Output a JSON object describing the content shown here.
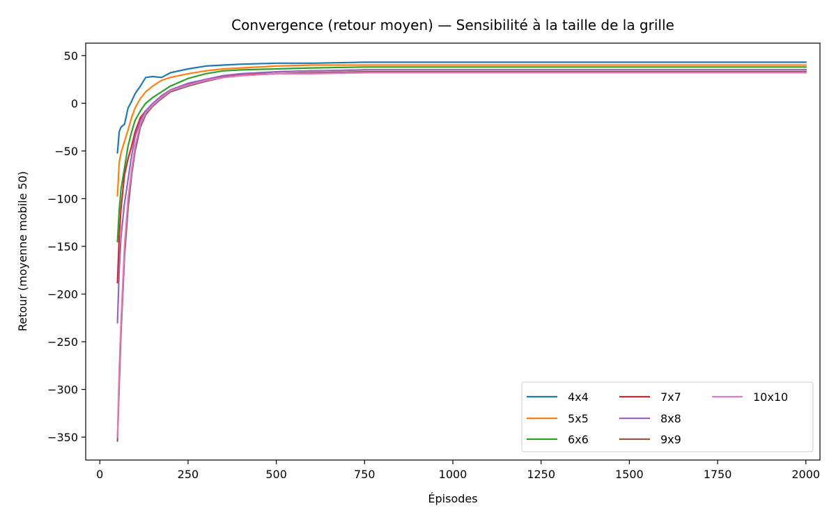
{
  "chart_data": {
    "type": "line",
    "title": "Convergence (retour moyen) — Sensibilité à la taille de la grille",
    "xlabel": "Épisodes",
    "ylabel": "Retour (moyenne mobile 50)",
    "xlim": [
      -40,
      2040
    ],
    "ylim": [
      -374,
      63
    ],
    "xticks": [
      0,
      250,
      500,
      750,
      1000,
      1250,
      1500,
      1750,
      2000
    ],
    "yticks": [
      50,
      0,
      -50,
      -100,
      -150,
      -200,
      -250,
      -300,
      -350
    ],
    "xtick_labels": [
      "0",
      "250",
      "500",
      "750",
      "1000",
      "1250",
      "1500",
      "1750",
      "2000"
    ],
    "ytick_labels": [
      "50",
      "0",
      "−50",
      "−100",
      "−150",
      "−200",
      "−250",
      "−300",
      "−350"
    ],
    "grid": false,
    "legend": {
      "placement": "lower-right",
      "columns": 3
    },
    "series": [
      {
        "name": "4x4",
        "color": "#1f77b4",
        "points": [
          [
            50,
            -52
          ],
          [
            55,
            -30
          ],
          [
            60,
            -25
          ],
          [
            70,
            -22
          ],
          [
            80,
            -5
          ],
          [
            90,
            2
          ],
          [
            100,
            10
          ],
          [
            115,
            18
          ],
          [
            130,
            27
          ],
          [
            150,
            28
          ],
          [
            175,
            27
          ],
          [
            200,
            32
          ],
          [
            250,
            36
          ],
          [
            300,
            39
          ],
          [
            350,
            40
          ],
          [
            400,
            41
          ],
          [
            500,
            42
          ],
          [
            600,
            42
          ],
          [
            750,
            43
          ],
          [
            1000,
            43
          ],
          [
            1250,
            43
          ],
          [
            1500,
            43
          ],
          [
            1750,
            43
          ],
          [
            2000,
            43
          ]
        ]
      },
      {
        "name": "5x5",
        "color": "#ff7f0e",
        "points": [
          [
            50,
            -97
          ],
          [
            55,
            -62
          ],
          [
            60,
            -52
          ],
          [
            70,
            -40
          ],
          [
            80,
            -28
          ],
          [
            90,
            -15
          ],
          [
            100,
            -5
          ],
          [
            115,
            5
          ],
          [
            130,
            12
          ],
          [
            150,
            18
          ],
          [
            175,
            24
          ],
          [
            200,
            27
          ],
          [
            250,
            31
          ],
          [
            300,
            34
          ],
          [
            350,
            36
          ],
          [
            400,
            37
          ],
          [
            500,
            39
          ],
          [
            600,
            40
          ],
          [
            750,
            40
          ],
          [
            1000,
            40
          ],
          [
            1250,
            40
          ],
          [
            1500,
            40
          ],
          [
            1750,
            40
          ],
          [
            2000,
            40
          ]
        ]
      },
      {
        "name": "6x6",
        "color": "#2ca02c",
        "points": [
          [
            50,
            -145
          ],
          [
            55,
            -112
          ],
          [
            60,
            -90
          ],
          [
            70,
            -68
          ],
          [
            80,
            -45
          ],
          [
            90,
            -30
          ],
          [
            100,
            -18
          ],
          [
            115,
            -8
          ],
          [
            130,
            0
          ],
          [
            150,
            6
          ],
          [
            175,
            12
          ],
          [
            200,
            18
          ],
          [
            250,
            26
          ],
          [
            300,
            31
          ],
          [
            350,
            34
          ],
          [
            400,
            35
          ],
          [
            500,
            36
          ],
          [
            600,
            37
          ],
          [
            750,
            38
          ],
          [
            1000,
            38
          ],
          [
            1250,
            38
          ],
          [
            1500,
            38
          ],
          [
            1750,
            38
          ],
          [
            2000,
            38
          ]
        ]
      },
      {
        "name": "7x7",
        "color": "#d62728",
        "points": [
          [
            50,
            -188
          ],
          [
            55,
            -140
          ],
          [
            60,
            -110
          ],
          [
            70,
            -75
          ],
          [
            80,
            -58
          ],
          [
            90,
            -45
          ],
          [
            100,
            -30
          ],
          [
            115,
            -15
          ],
          [
            130,
            -8
          ],
          [
            150,
            -2
          ],
          [
            175,
            5
          ],
          [
            200,
            12
          ],
          [
            250,
            20
          ],
          [
            300,
            25
          ],
          [
            350,
            28
          ],
          [
            400,
            30
          ],
          [
            500,
            33
          ],
          [
            600,
            34
          ],
          [
            750,
            35
          ],
          [
            1000,
            35
          ],
          [
            1250,
            35
          ],
          [
            1500,
            35
          ],
          [
            1750,
            35
          ],
          [
            2000,
            35
          ]
        ]
      },
      {
        "name": "8x8",
        "color": "#9467bd",
        "points": [
          [
            50,
            -230
          ],
          [
            55,
            -175
          ],
          [
            60,
            -140
          ],
          [
            70,
            -105
          ],
          [
            80,
            -80
          ],
          [
            90,
            -55
          ],
          [
            100,
            -35
          ],
          [
            115,
            -18
          ],
          [
            130,
            -8
          ],
          [
            150,
            0
          ],
          [
            175,
            8
          ],
          [
            200,
            14
          ],
          [
            250,
            21
          ],
          [
            300,
            25
          ],
          [
            350,
            29
          ],
          [
            400,
            31
          ],
          [
            500,
            33
          ],
          [
            600,
            34
          ],
          [
            750,
            35
          ],
          [
            1000,
            35
          ],
          [
            1250,
            35
          ],
          [
            1500,
            35
          ],
          [
            1750,
            35
          ],
          [
            2000,
            35
          ]
        ]
      },
      {
        "name": "9x9",
        "color": "#8c564b",
        "points": [
          [
            50,
            -354
          ],
          [
            55,
            -295
          ],
          [
            60,
            -240
          ],
          [
            70,
            -160
          ],
          [
            80,
            -110
          ],
          [
            90,
            -75
          ],
          [
            100,
            -50
          ],
          [
            115,
            -25
          ],
          [
            130,
            -12
          ],
          [
            150,
            -3
          ],
          [
            175,
            5
          ],
          [
            200,
            12
          ],
          [
            250,
            18
          ],
          [
            300,
            23
          ],
          [
            350,
            27
          ],
          [
            400,
            29
          ],
          [
            500,
            31
          ],
          [
            600,
            32
          ],
          [
            750,
            33
          ],
          [
            1000,
            33
          ],
          [
            1250,
            33
          ],
          [
            1500,
            33
          ],
          [
            1750,
            33
          ],
          [
            2000,
            33
          ]
        ]
      },
      {
        "name": "10x10",
        "color": "#e377c2",
        "points": [
          [
            50,
            -350
          ],
          [
            55,
            -280
          ],
          [
            60,
            -230
          ],
          [
            70,
            -150
          ],
          [
            80,
            -100
          ],
          [
            90,
            -70
          ],
          [
            100,
            -45
          ],
          [
            115,
            -22
          ],
          [
            130,
            -10
          ],
          [
            150,
            -2
          ],
          [
            175,
            6
          ],
          [
            200,
            13
          ],
          [
            250,
            19
          ],
          [
            300,
            24
          ],
          [
            350,
            27
          ],
          [
            400,
            29
          ],
          [
            500,
            31
          ],
          [
            600,
            31
          ],
          [
            750,
            32
          ],
          [
            1000,
            32
          ],
          [
            1250,
            32
          ],
          [
            1500,
            32
          ],
          [
            1750,
            32
          ],
          [
            2000,
            32
          ]
        ]
      }
    ]
  }
}
